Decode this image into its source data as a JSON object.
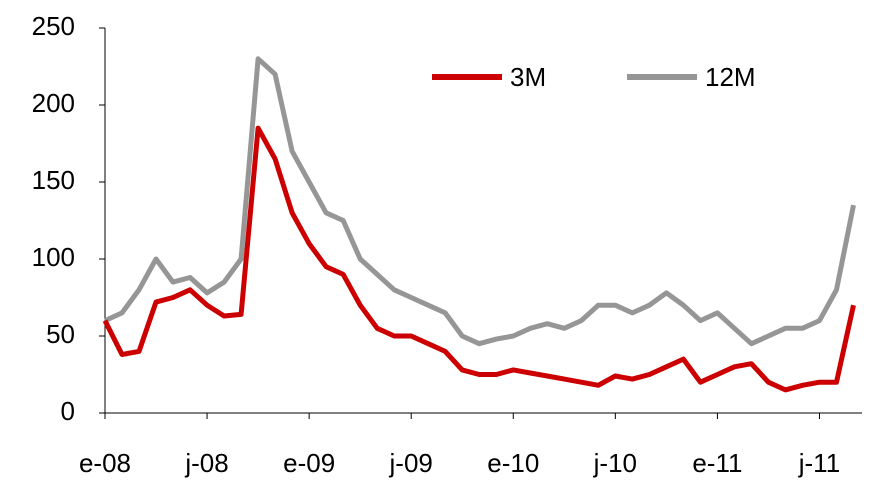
{
  "chart_data": {
    "type": "line",
    "x": [
      "2008-01",
      "2008-02",
      "2008-03",
      "2008-04",
      "2008-05",
      "2008-06",
      "2008-07",
      "2008-08",
      "2008-09",
      "2008-10",
      "2008-11",
      "2008-12",
      "2009-01",
      "2009-02",
      "2009-03",
      "2009-04",
      "2009-05",
      "2009-06",
      "2009-07",
      "2009-08",
      "2009-09",
      "2009-10",
      "2009-11",
      "2009-12",
      "2010-01",
      "2010-02",
      "2010-03",
      "2010-04",
      "2010-05",
      "2010-06",
      "2010-07",
      "2010-08",
      "2010-09",
      "2010-10",
      "2010-11",
      "2010-12",
      "2011-01",
      "2011-02",
      "2011-03",
      "2011-04",
      "2011-05",
      "2011-06",
      "2011-07",
      "2011-08",
      "2011-09"
    ],
    "series": [
      {
        "name": "3M",
        "color": "#cc0000",
        "values": [
          60,
          38,
          40,
          72,
          75,
          80,
          70,
          63,
          64,
          185,
          165,
          130,
          110,
          95,
          90,
          70,
          55,
          50,
          50,
          45,
          40,
          28,
          25,
          25,
          28,
          26,
          24,
          22,
          20,
          18,
          24,
          22,
          25,
          30,
          35,
          20,
          25,
          30,
          32,
          20,
          15,
          18,
          20,
          20,
          70
        ]
      },
      {
        "name": "12M",
        "color": "#969696",
        "values": [
          60,
          65,
          80,
          100,
          85,
          88,
          78,
          85,
          100,
          230,
          220,
          170,
          150,
          130,
          125,
          100,
          90,
          80,
          75,
          70,
          65,
          50,
          45,
          48,
          50,
          55,
          58,
          55,
          60,
          70,
          70,
          65,
          70,
          78,
          70,
          60,
          65,
          55,
          45,
          50,
          55,
          55,
          60,
          80,
          135
        ]
      }
    ],
    "xlim": [
      "2008-01",
      "2011-09"
    ],
    "xticks": [
      {
        "value": "2008-01",
        "label": "e-08"
      },
      {
        "value": "2008-07",
        "label": "j-08"
      },
      {
        "value": "2009-01",
        "label": "e-09"
      },
      {
        "value": "2009-07",
        "label": "j-09"
      },
      {
        "value": "2010-01",
        "label": "e-10"
      },
      {
        "value": "2010-07",
        "label": "j-10"
      },
      {
        "value": "2011-01",
        "label": "e-11"
      },
      {
        "value": "2011-07",
        "label": "j-11"
      }
    ],
    "ylim": [
      0,
      250
    ],
    "yticks": [
      0,
      50,
      100,
      150,
      200,
      250
    ],
    "legend": "top-right"
  }
}
